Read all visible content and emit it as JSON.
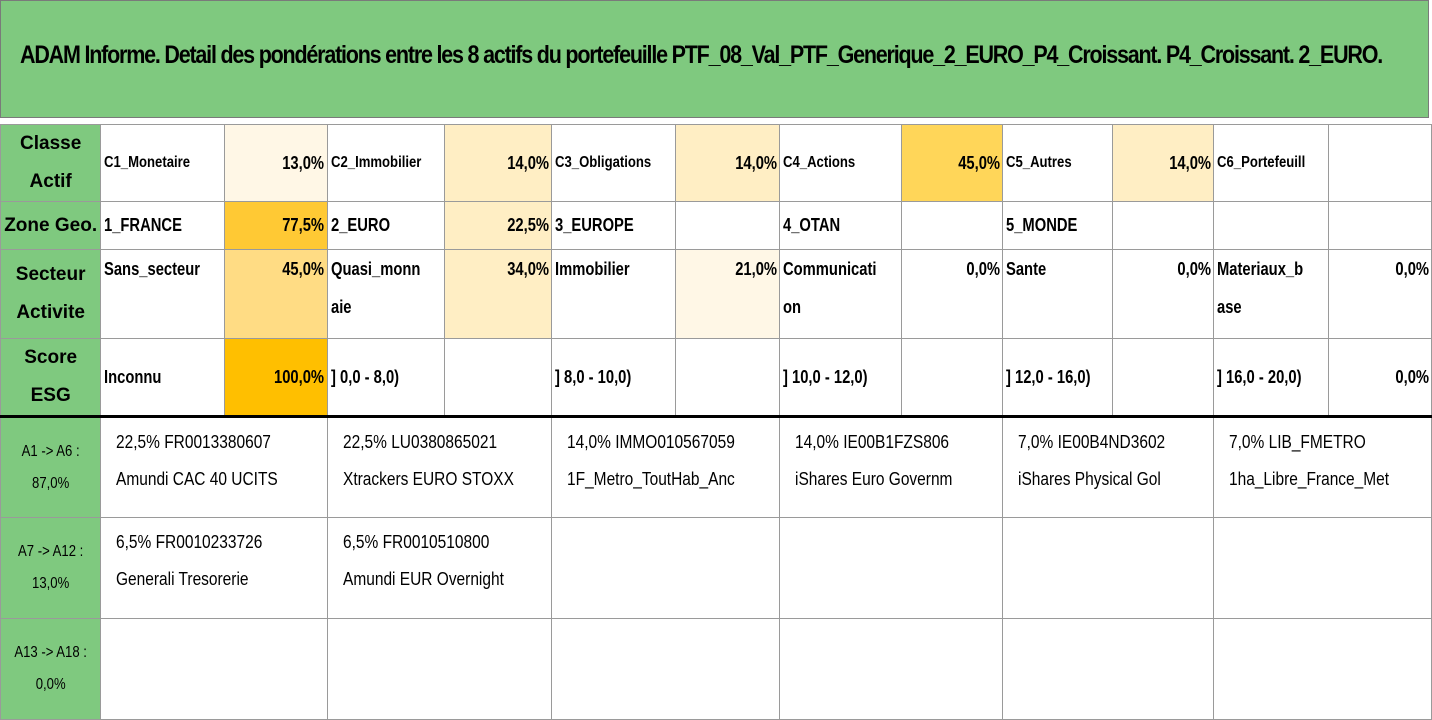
{
  "title": "ADAM Informe. Detail des pondérations entre les 8 actifs du portefeuille PTF_08_Val_PTF_Generique_2_EURO_P4_Croissant. P4_Croissant. 2_EURO.",
  "rows": {
    "classe": {
      "header": "Classe Actif",
      "cells": [
        {
          "label": "C1_Monetaire",
          "pct": "13,0%"
        },
        {
          "label": "C2_Immobilier",
          "pct": "14,0%"
        },
        {
          "label": "C3_Obligations",
          "pct": "14,0%"
        },
        {
          "label": "C4_Actions",
          "pct": "45,0%"
        },
        {
          "label": "C5_Autres",
          "pct": "14,0%"
        },
        {
          "label": "C6_Portefeuill",
          "pct": ""
        }
      ]
    },
    "zone": {
      "header": "Zone Geo.",
      "cells": [
        {
          "label": "1_FRANCE",
          "pct": "77,5%"
        },
        {
          "label": "2_EURO",
          "pct": "22,5%"
        },
        {
          "label": "3_EUROPE",
          "pct": ""
        },
        {
          "label": "4_OTAN",
          "pct": ""
        },
        {
          "label": "5_MONDE",
          "pct": ""
        },
        {
          "label": "",
          "pct": ""
        }
      ]
    },
    "secteur": {
      "header": "Secteur Activite",
      "cells": [
        {
          "label": "Sans_secteur",
          "pct": "45,0%"
        },
        {
          "label": "Quasi_monn aie",
          "pct": "34,0%"
        },
        {
          "label": "Immobilier",
          "pct": "21,0%"
        },
        {
          "label": "Communicati on",
          "pct": "0,0%"
        },
        {
          "label": "Sante",
          "pct": "0,0%"
        },
        {
          "label": "Materiaux_b ase",
          "pct": "0,0%"
        }
      ]
    },
    "esg": {
      "header": "Score ESG",
      "cells": [
        {
          "label": "Inconnu",
          "pct": "100,0%"
        },
        {
          "label": "] 0,0 - 8,0)",
          "pct": ""
        },
        {
          "label": "] 8,0 - 10,0)",
          "pct": ""
        },
        {
          "label": "] 10,0 - 12,0)",
          "pct": ""
        },
        {
          "label": "] 12,0 - 16,0)",
          "pct": ""
        },
        {
          "label": "] 16,0 - 20,0)",
          "pct": "0,0%"
        }
      ]
    }
  },
  "asset_groups": [
    {
      "header": "A1 -> A6 : 87,0%",
      "assets": [
        {
          "line1": "22,5% FR0013380607",
          "line2": "Amundi CAC 40 UCITS"
        },
        {
          "line1": "22,5% LU0380865021",
          "line2": "Xtrackers EURO STOXX"
        },
        {
          "line1": "14,0% IMMO010567059",
          "line2": "1F_Metro_ToutHab_Anc"
        },
        {
          "line1": "14,0% IE00B1FZS806",
          "line2": "iShares Euro Governm"
        },
        {
          "line1": "7,0% IE00B4ND3602",
          "line2": "iShares Physical Gol"
        },
        {
          "line1": "7,0% LIB_FMETRO",
          "line2": "1ha_Libre_France_Met"
        }
      ]
    },
    {
      "header": "A7 -> A12 : 13,0%",
      "assets": [
        {
          "line1": "6,5% FR0010233726",
          "line2": "Generali Tresorerie"
        },
        {
          "line1": "6,5% FR0010510800",
          "line2": "Amundi EUR Overnight"
        },
        {
          "line1": "",
          "line2": ""
        },
        {
          "line1": "",
          "line2": ""
        },
        {
          "line1": "",
          "line2": ""
        },
        {
          "line1": "",
          "line2": ""
        }
      ]
    },
    {
      "header": "A13 -> A18 : 0,0%",
      "assets": [
        {
          "line1": "",
          "line2": ""
        },
        {
          "line1": "",
          "line2": ""
        },
        {
          "line1": "",
          "line2": ""
        },
        {
          "line1": "",
          "line2": ""
        },
        {
          "line1": "",
          "line2": ""
        },
        {
          "line1": "",
          "line2": ""
        }
      ]
    }
  ]
}
